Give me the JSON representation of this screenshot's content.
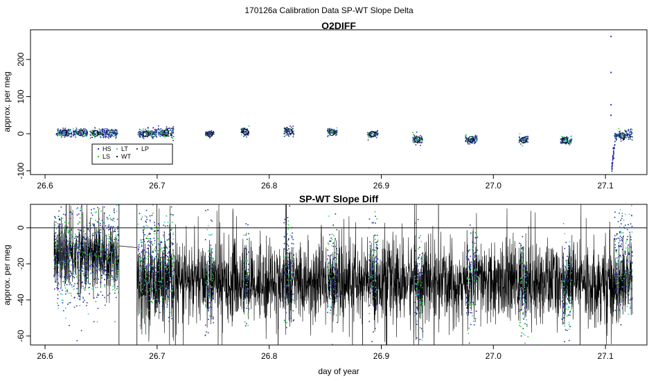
{
  "suptitle": "170126a   Calibration Data SP-WT Slope Delta",
  "colors": {
    "HS": "#2a2aa8",
    "LS": "#22cc22",
    "LT": "#33cccc",
    "WT": "#000000",
    "LP": "#1a3a6e",
    "circle": "#000000",
    "reference": "#000000",
    "black_trace": "#000000"
  },
  "chart_data": [
    {
      "type": "scatter",
      "title": "O2DIFF",
      "xlabel": "",
      "ylabel": "approx. per meg",
      "xlim": [
        26.587,
        27.137
      ],
      "ylim": [
        -110,
        280
      ],
      "x_ticks": [
        "26.6",
        "26.7",
        "26.8",
        "26.9",
        "27.0",
        "27.1"
      ],
      "x_tick_values": [
        26.6,
        26.7,
        26.8,
        26.9,
        27.0,
        27.1
      ],
      "y_ticks": [
        "-100",
        "0",
        "100",
        "200"
      ],
      "y_tick_values": [
        -100,
        0,
        100,
        200
      ],
      "legend": {
        "placement": "bottom-left",
        "entries": [
          {
            "label": "HS",
            "series": "HS"
          },
          {
            "label": "LS",
            "series": "LS"
          },
          {
            "label": "LT",
            "series": "LT"
          },
          {
            "label": "WT",
            "series": "WT"
          },
          {
            "label": "LP",
            "series": "LP"
          }
        ]
      },
      "clusters": [
        {
          "start": 26.61,
          "end": 26.624,
          "mean": 3,
          "spread": 5
        },
        {
          "start": 26.625,
          "end": 26.638,
          "mean": 3,
          "spread": 5
        },
        {
          "start": 26.64,
          "end": 26.665,
          "mean": 1,
          "spread": 6
        },
        {
          "start": 26.683,
          "end": 26.7,
          "mean": 0,
          "spread": 6
        },
        {
          "start": 26.701,
          "end": 26.715,
          "mean": 4,
          "spread": 8
        },
        {
          "start": 26.743,
          "end": 26.751,
          "mean": 0,
          "spread": 4
        },
        {
          "start": 26.775,
          "end": 26.782,
          "mean": 6,
          "spread": 6
        },
        {
          "start": 26.813,
          "end": 26.822,
          "mean": 7,
          "spread": 6
        },
        {
          "start": 26.852,
          "end": 26.861,
          "mean": 4,
          "spread": 5
        },
        {
          "start": 26.888,
          "end": 26.897,
          "mean": 0,
          "spread": 5
        },
        {
          "start": 26.928,
          "end": 26.937,
          "mean": -16,
          "spread": 6
        },
        {
          "start": 26.975,
          "end": 26.986,
          "mean": -15,
          "spread": 5
        },
        {
          "start": 27.023,
          "end": 27.031,
          "mean": -17,
          "spread": 5
        },
        {
          "start": 27.06,
          "end": 27.07,
          "mean": -18,
          "spread": 6
        },
        {
          "start": 27.108,
          "end": 27.124,
          "mean": -5,
          "spread": 7
        }
      ],
      "circles": [
        {
          "x": 26.617,
          "y": 2
        },
        {
          "x": 26.632,
          "y": 2
        },
        {
          "x": 26.645,
          "y": 1
        },
        {
          "x": 26.69,
          "y": -1
        },
        {
          "x": 26.708,
          "y": 3
        },
        {
          "x": 26.747,
          "y": -1
        },
        {
          "x": 26.779,
          "y": 5
        },
        {
          "x": 26.818,
          "y": 6
        },
        {
          "x": 26.856,
          "y": 3
        },
        {
          "x": 26.892,
          "y": -1
        },
        {
          "x": 26.932,
          "y": -16
        },
        {
          "x": 26.98,
          "y": -15
        },
        {
          "x": 27.027,
          "y": -17
        },
        {
          "x": 27.064,
          "y": -18
        },
        {
          "x": 27.115,
          "y": -5
        }
      ],
      "spike": {
        "x": [
          27.105,
          27.105,
          27.105,
          27.105,
          27.106,
          27.106,
          27.107,
          27.107
        ],
        "y": [
          262,
          165,
          78,
          50,
          -95,
          -80,
          -60,
          -40
        ]
      }
    },
    {
      "type": "line",
      "title": "SP-WT Slope Diff",
      "xlabel": "day of year",
      "ylabel": "approx. per meg",
      "xlim": [
        26.587,
        27.137
      ],
      "ylim": [
        -65,
        13
      ],
      "x_ticks": [
        "26.6",
        "26.7",
        "26.8",
        "26.9",
        "27.0",
        "27.1"
      ],
      "x_tick_values": [
        26.6,
        26.7,
        26.8,
        26.9,
        27.0,
        27.1
      ],
      "y_ticks": [
        "-60",
        "-40",
        "-20",
        "0"
      ],
      "y_tick_values": [
        -60,
        -40,
        -20,
        0
      ],
      "reference_line": 0,
      "black_trace": {
        "segments": [
          {
            "start": 26.608,
            "end": 26.666,
            "mean": -15,
            "amplitude": 18
          },
          {
            "start": 26.682,
            "end": 27.124,
            "mean": -30,
            "amplitude": 20
          }
        ],
        "connector": {
          "x": [
            26.666,
            26.682
          ],
          "y": [
            -10,
            -11
          ]
        }
      },
      "colored_bursts": [
        {
          "start": 26.608,
          "end": 26.666,
          "mean": -15
        },
        {
          "start": 26.683,
          "end": 26.715,
          "mean": -18
        },
        {
          "start": 26.743,
          "end": 26.751,
          "mean": -28
        },
        {
          "start": 26.777,
          "end": 26.782,
          "mean": -25
        },
        {
          "start": 26.813,
          "end": 26.822,
          "mean": -22
        },
        {
          "start": 26.852,
          "end": 26.861,
          "mean": -25
        },
        {
          "start": 26.889,
          "end": 26.897,
          "mean": -25
        },
        {
          "start": 26.93,
          "end": 26.937,
          "mean": -32
        },
        {
          "start": 26.976,
          "end": 26.986,
          "mean": -30
        },
        {
          "start": 27.023,
          "end": 27.031,
          "mean": -35
        },
        {
          "start": 27.061,
          "end": 27.07,
          "mean": -35
        },
        {
          "start": 27.108,
          "end": 27.124,
          "mean": -18
        }
      ]
    }
  ]
}
